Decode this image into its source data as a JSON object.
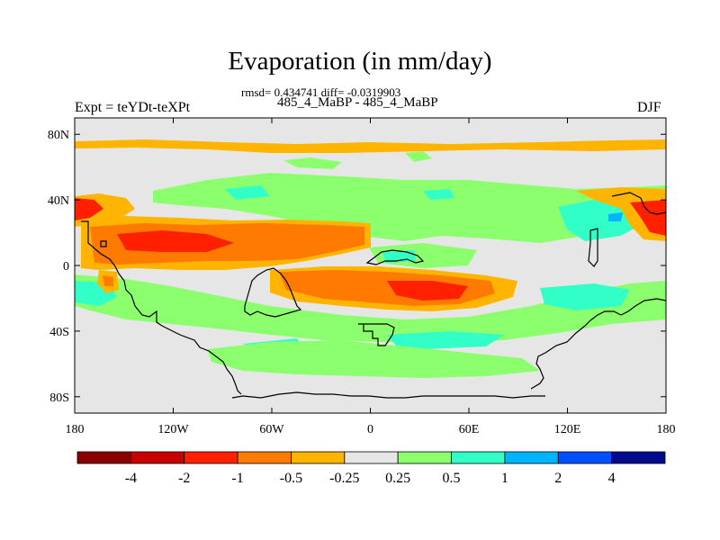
{
  "title": "Evaporation (in mm/day)",
  "stats_line": "rmsd= 0.434741 diff= -0.0319903",
  "subtitle": "485_4_MaBP - 485_4_MaBP",
  "left_label": "Expt = teYDt-teXPt",
  "right_label": "DJF",
  "map": {
    "projection": "cylindrical-equidistant",
    "lon_range": [
      -180,
      180
    ],
    "lat_range": [
      -90,
      90
    ],
    "background_color": "#e6e6e6",
    "coastline_color": "#000000",
    "y_ticks": [
      {
        "value": 80,
        "label": "80N"
      },
      {
        "value": 40,
        "label": "40N"
      },
      {
        "value": 0,
        "label": "0"
      },
      {
        "value": -40,
        "label": "40S"
      },
      {
        "value": -80,
        "label": "80S"
      }
    ],
    "x_ticks": [
      {
        "value": -180,
        "label": "180"
      },
      {
        "value": -120,
        "label": "120W"
      },
      {
        "value": -60,
        "label": "60W"
      },
      {
        "value": 0,
        "label": "0"
      },
      {
        "value": 60,
        "label": "60E"
      },
      {
        "value": 120,
        "label": "120E"
      },
      {
        "value": 180,
        "label": "180"
      }
    ]
  },
  "colorbar": {
    "colors": [
      "#8b0000",
      "#c80000",
      "#ff2000",
      "#ff7a00",
      "#ffb400",
      "#e6e6e6",
      "#8cff6e",
      "#32ffc8",
      "#00b4ff",
      "#0050ff",
      "#000a8c"
    ],
    "labels": [
      "-4",
      "-2",
      "-1",
      "-0.5",
      "-0.25",
      "0.25",
      "0.5",
      "1",
      "2",
      "4"
    ]
  }
}
